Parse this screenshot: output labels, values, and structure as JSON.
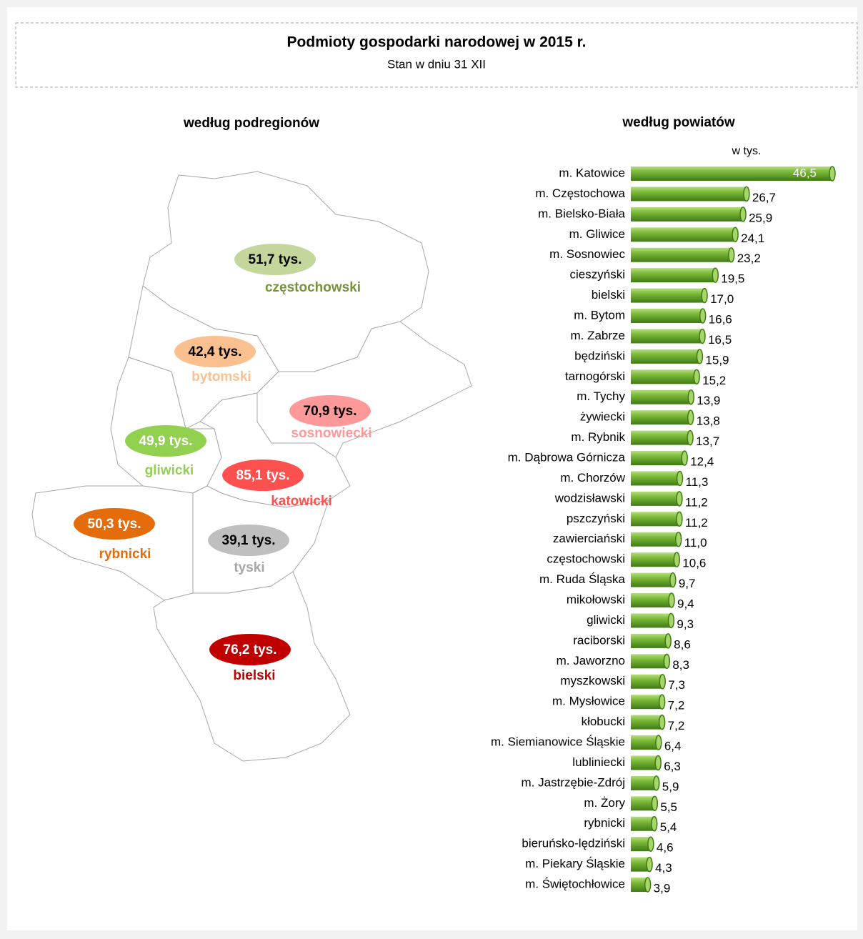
{
  "title": "Podmioty gospodarki narodowej w 2015 r.",
  "subtitle": "Stan w dniu 31 XII",
  "chart_data": [
    {
      "type": "map",
      "title": "według podregionów",
      "categories": [
        "częstochowski",
        "bytomski",
        "sosnowiecki",
        "gliwicki",
        "katowicki",
        "rybnicki",
        "tyski",
        "bielski"
      ],
      "values": [
        51.7,
        42.4,
        70.9,
        49.9,
        85.1,
        50.3,
        39.1,
        76.2
      ],
      "value_labels": [
        "51,7 tys.",
        "42,4 tys.",
        "70,9 tys.",
        "49,9 tys.",
        "85,1 tys.",
        "50,3 tys.",
        "39,1 tys.",
        "76,2 tys."
      ],
      "colors": [
        "#c3d69b",
        "#fac090",
        "#ff9999",
        "#92d050",
        "#ff5050",
        "#e46c0a",
        "#bfbfbf",
        "#c00000"
      ],
      "name_colors": [
        "#76923c",
        "#fac090",
        "#ff9999",
        "#92d050",
        "#ff5050",
        "#e46c0a",
        "#a6a6a6",
        "#c00000"
      ],
      "label_colors": [
        "#000000",
        "#000000",
        "#000000",
        "#ffffff",
        "#ffffff",
        "#ffffff",
        "#000000",
        "#ffffff"
      ]
    },
    {
      "type": "bar",
      "orientation": "horizontal",
      "title": "według powiatów",
      "unit": "w tys.",
      "color": "#6aaa2a",
      "categories": [
        "m. Katowice",
        "m. Częstochowa",
        "m. Bielsko-Biała",
        "m. Gliwice",
        "m. Sosnowiec",
        "cieszyński",
        "bielski",
        "m. Bytom",
        "m. Zabrze",
        "będziński",
        "tarnogórski",
        "m. Tychy",
        "żywiecki",
        "m. Rybnik",
        "m. Dąbrowa Górnicza",
        "m. Chorzów",
        "wodzisławski",
        "pszczyński",
        "zawierciański",
        "częstochowski",
        "m. Ruda Śląska",
        "mikołowski",
        "gliwicki",
        "raciborski",
        "m. Jaworzno",
        "myszkowski",
        "m. Mysłowice",
        "kłobucki",
        "m. Siemianowice Śląskie",
        "lubliniecki",
        "m. Jastrzębie-Zdrój",
        "m. Żory",
        "rybnicki",
        "bieruńsko-lędziński",
        "m. Piekary Śląskie",
        "m. Świętochłowice"
      ],
      "values": [
        46.5,
        26.7,
        25.9,
        24.1,
        23.2,
        19.5,
        17.0,
        16.6,
        16.5,
        15.9,
        15.2,
        13.9,
        13.8,
        13.7,
        12.4,
        11.3,
        11.2,
        11.2,
        11.0,
        10.6,
        9.7,
        9.4,
        9.3,
        8.6,
        8.3,
        7.3,
        7.2,
        7.2,
        6.4,
        6.3,
        5.9,
        5.5,
        5.4,
        4.6,
        4.3,
        3.9
      ],
      "value_labels": [
        "46,5",
        "26,7",
        "25,9",
        "24,1",
        "23,2",
        "19,5",
        "17,0",
        "16,6",
        "16,5",
        "15,9",
        "15,2",
        "13,9",
        "13,8",
        "13,7",
        "12,4",
        "11,3",
        "11,2",
        "11,2",
        "11,0",
        "10,6",
        "9,7",
        "9,4",
        "9,3",
        "8,6",
        "8,3",
        "7,3",
        "7,2",
        "7,2",
        "6,4",
        "6,3",
        "5,9",
        "5,5",
        "5,4",
        "4,6",
        "4,3",
        "3,9"
      ]
    }
  ]
}
